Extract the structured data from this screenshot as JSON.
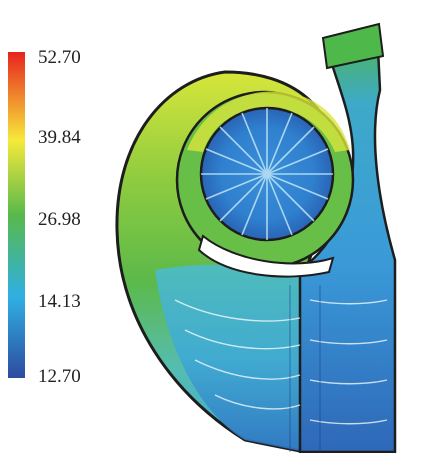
{
  "legend": {
    "ticks": [
      "52.70",
      "39.84",
      "26.98",
      "14.13",
      "12.70"
    ],
    "colors": [
      "#e8231f",
      "#f6e93a",
      "#58b94a",
      "#2fb0e3",
      "#2e4ba0"
    ]
  },
  "figure": {
    "region_colors": {
      "volute_outer": "#5cb94a",
      "volute_top": "#d7e63a",
      "rotor": "#2f80cf",
      "outlet_duct": "#3a9ad8",
      "outlet_lower": "#2e68b8",
      "lower_chamber": "#3fa9d6"
    }
  }
}
